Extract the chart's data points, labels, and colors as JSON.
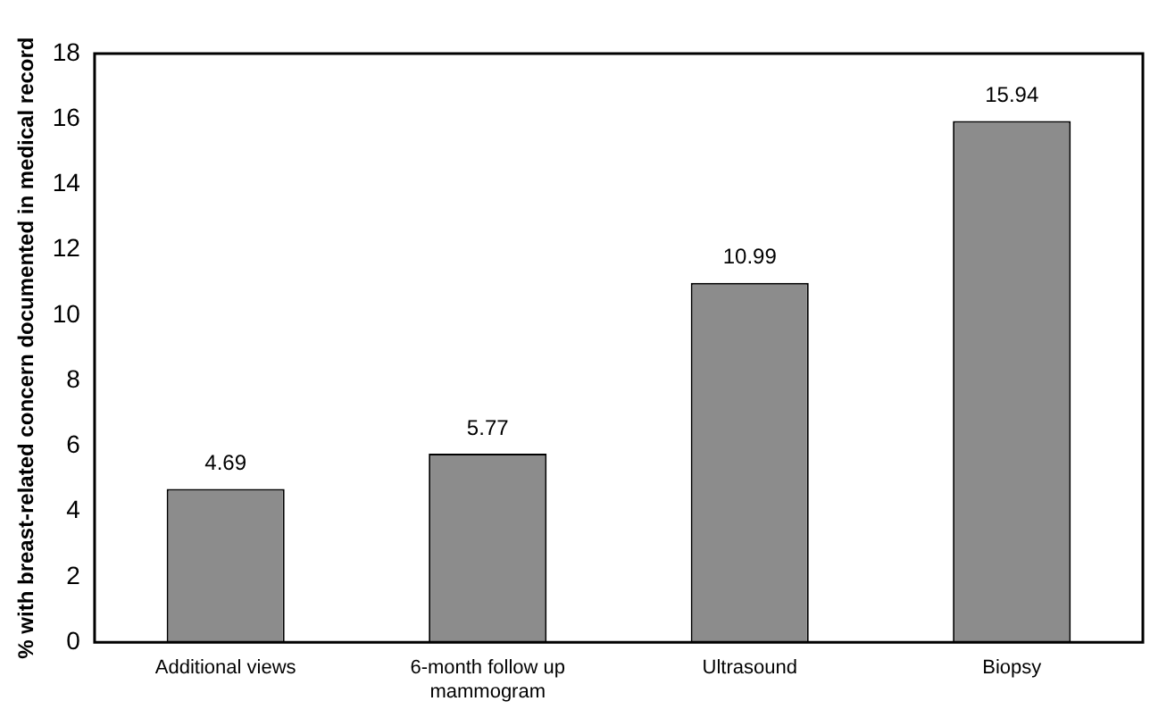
{
  "chart_data": {
    "type": "bar",
    "ylabel": "% with breast-related concern documented in medical record",
    "categories": [
      "Additional views",
      "6-month follow up mammogram",
      "Ultrasound",
      "Biopsy"
    ],
    "values": [
      4.69,
      5.77,
      10.99,
      15.94
    ],
    "color": "#8c8c8c",
    "ylim": [
      0,
      18
    ],
    "yticks": [
      0,
      2,
      4,
      6,
      8,
      10,
      12,
      14,
      16,
      18
    ],
    "grid": false,
    "legend": false,
    "data_labels": true
  }
}
